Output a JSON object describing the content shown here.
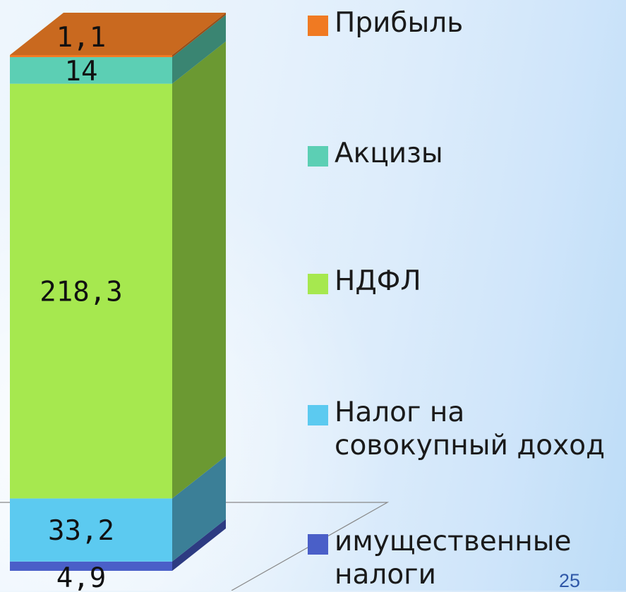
{
  "chart_data": {
    "type": "bar",
    "stacked": true,
    "three_d": true,
    "categories": [
      ""
    ],
    "series": [
      {
        "name": "имущественные налоги",
        "values": [
          4.9
        ],
        "label": "4,9",
        "color": "#4a5fc8",
        "side_color": "#2d3b82",
        "top_color": "#6a7fe0"
      },
      {
        "name": "Налог на совокупный доход",
        "values": [
          33.2
        ],
        "label": "33,2",
        "color": "#5ccaf0",
        "side_color": "#3b7f97",
        "top_color": "#86dcf7"
      },
      {
        "name": "НДФЛ",
        "values": [
          218.3
        ],
        "label": "218,3",
        "color": "#a6e84f",
        "side_color": "#6b9932",
        "top_color": "#c3f47f"
      },
      {
        "name": "Акцизы",
        "values": [
          14
        ],
        "label": "14",
        "color": "#5ccfb4",
        "side_color": "#3a8572",
        "top_color": "#86e0cc"
      },
      {
        "name": "Прибыль",
        "values": [
          1.1
        ],
        "label": "1,1",
        "color": "#f07a22",
        "side_color": "#9a4e16",
        "top_color": "#c9691f"
      }
    ],
    "legend_position": "right",
    "grid": false
  },
  "legend": {
    "items": [
      {
        "label": "Прибыль",
        "color": "#f07a22"
      },
      {
        "label": "Акцизы",
        "color": "#5ccfb4"
      },
      {
        "label": "НДФЛ",
        "color": "#a6e84f"
      },
      {
        "label": "Налог на\nсовокупный  доход",
        "color": "#5ccaf0"
      },
      {
        "label": "имущественные\nналоги",
        "color": "#4a5fc8"
      }
    ]
  },
  "page_number": "25"
}
